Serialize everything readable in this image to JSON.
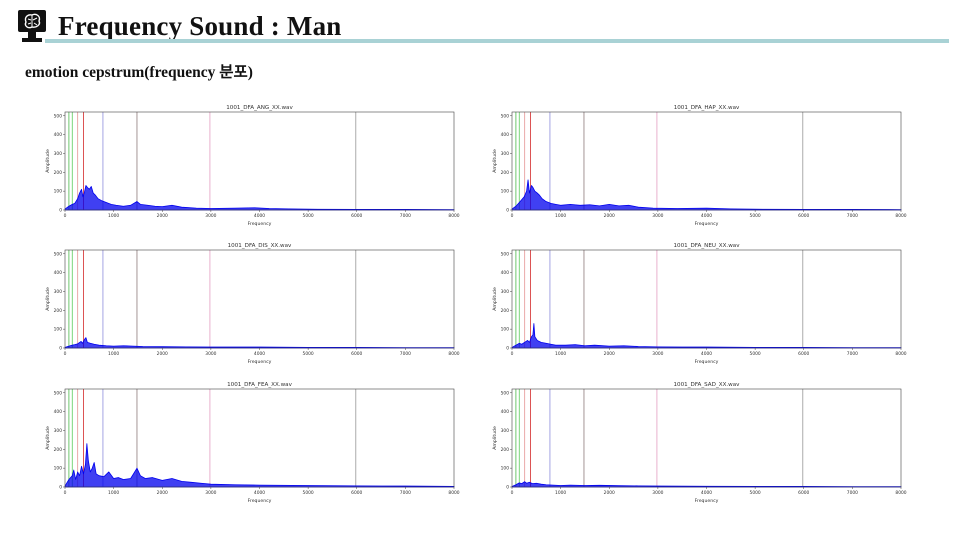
{
  "slide": {
    "title": "Frequency Sound : Man",
    "subtitle": "emotion cepstrum(frequency 분포)"
  },
  "colors": {
    "title_rule": "#a9d2d5",
    "spectrum": "#0000ee",
    "marker_lines": [
      "#5fbf5f",
      "#6ccf6c",
      "#e8a0a0",
      "#d94040",
      "#9a9ae0",
      "#9a8a8a",
      "#e6a8c8",
      "#a0a0a0"
    ]
  },
  "chart_data": [
    {
      "type": "line",
      "title": "1001_DFA_ANG_XX.wav",
      "xlabel": "Frequency",
      "ylabel": "Amplitude",
      "xlim": [
        0,
        8000
      ],
      "ylim": [
        0,
        520
      ],
      "xticks": [
        "0",
        "1000",
        "2000",
        "3000",
        "4000",
        "5000",
        "6000",
        "7000",
        "8000"
      ],
      "yticks": [
        "0",
        "100",
        "200",
        "300",
        "400",
        "500"
      ],
      "marker_lines_x": [
        80,
        150,
        260,
        380,
        780,
        1480,
        2980,
        5980
      ],
      "series": [
        {
          "points": [
            [
              0,
              5
            ],
            [
              80,
              20
            ],
            [
              150,
              30
            ],
            [
              200,
              35
            ],
            [
              260,
              60
            ],
            [
              300,
              90
            ],
            [
              340,
              110
            ],
            [
              370,
              70
            ],
            [
              400,
              95
            ],
            [
              430,
              130
            ],
            [
              460,
              120
            ],
            [
              500,
              110
            ],
            [
              540,
              125
            ],
            [
              580,
              90
            ],
            [
              620,
              80
            ],
            [
              680,
              60
            ],
            [
              750,
              50
            ],
            [
              850,
              40
            ],
            [
              950,
              30
            ],
            [
              1050,
              25
            ],
            [
              1200,
              20
            ],
            [
              1350,
              25
            ],
            [
              1480,
              45
            ],
            [
              1550,
              30
            ],
            [
              1700,
              25
            ],
            [
              1850,
              20
            ],
            [
              2000,
              18
            ],
            [
              2200,
              25
            ],
            [
              2400,
              15
            ],
            [
              2700,
              10
            ],
            [
              3000,
              8
            ],
            [
              3500,
              10
            ],
            [
              3900,
              12
            ],
            [
              4200,
              8
            ],
            [
              4600,
              6
            ],
            [
              5200,
              4
            ],
            [
              6000,
              3
            ],
            [
              7000,
              3
            ],
            [
              8000,
              2
            ]
          ]
        }
      ]
    },
    {
      "type": "line",
      "title": "1001_DFA_HAP_XX.wav",
      "xlabel": "Frequency",
      "ylabel": "Amplitude",
      "xlim": [
        0,
        8000
      ],
      "ylim": [
        0,
        520
      ],
      "xticks": [
        "0",
        "1000",
        "2000",
        "3000",
        "4000",
        "5000",
        "6000",
        "7000",
        "8000"
      ],
      "yticks": [
        "0",
        "100",
        "200",
        "300",
        "400",
        "500"
      ],
      "marker_lines_x": [
        80,
        150,
        260,
        380,
        780,
        1480,
        2980,
        5980
      ],
      "series": [
        {
          "points": [
            [
              0,
              5
            ],
            [
              80,
              20
            ],
            [
              150,
              40
            ],
            [
              200,
              55
            ],
            [
              250,
              70
            ],
            [
              300,
              100
            ],
            [
              330,
              160
            ],
            [
              360,
              90
            ],
            [
              400,
              130
            ],
            [
              430,
              120
            ],
            [
              470,
              100
            ],
            [
              520,
              90
            ],
            [
              560,
              80
            ],
            [
              620,
              60
            ],
            [
              700,
              45
            ],
            [
              800,
              35
            ],
            [
              900,
              30
            ],
            [
              1000,
              25
            ],
            [
              1200,
              30
            ],
            [
              1400,
              25
            ],
            [
              1600,
              28
            ],
            [
              1800,
              22
            ],
            [
              2000,
              30
            ],
            [
              2200,
              22
            ],
            [
              2400,
              25
            ],
            [
              2600,
              15
            ],
            [
              2900,
              10
            ],
            [
              3400,
              8
            ],
            [
              4000,
              10
            ],
            [
              4500,
              6
            ],
            [
              5200,
              4
            ],
            [
              6000,
              3
            ],
            [
              7000,
              3
            ],
            [
              8000,
              2
            ]
          ]
        }
      ]
    },
    {
      "type": "line",
      "title": "1001_DFA_DIS_XX.wav",
      "xlabel": "Frequency",
      "ylabel": "Amplitude",
      "xlim": [
        0,
        8000
      ],
      "ylim": [
        0,
        520
      ],
      "xticks": [
        "0",
        "1000",
        "2000",
        "3000",
        "4000",
        "5000",
        "6000",
        "7000",
        "8000"
      ],
      "yticks": [
        "0",
        "100",
        "200",
        "300",
        "400",
        "500"
      ],
      "marker_lines_x": [
        80,
        150,
        260,
        380,
        780,
        1480,
        2980,
        5980
      ],
      "series": [
        {
          "points": [
            [
              0,
              3
            ],
            [
              80,
              10
            ],
            [
              150,
              15
            ],
            [
              200,
              18
            ],
            [
              260,
              22
            ],
            [
              330,
              35
            ],
            [
              360,
              25
            ],
            [
              400,
              45
            ],
            [
              430,
              55
            ],
            [
              460,
              30
            ],
            [
              520,
              25
            ],
            [
              600,
              20
            ],
            [
              700,
              15
            ],
            [
              850,
              12
            ],
            [
              1000,
              10
            ],
            [
              1200,
              12
            ],
            [
              1400,
              10
            ],
            [
              1600,
              8
            ],
            [
              2000,
              7
            ],
            [
              2500,
              6
            ],
            [
              3000,
              5
            ],
            [
              4000,
              5
            ],
            [
              5000,
              3
            ],
            [
              6000,
              3
            ],
            [
              7000,
              2
            ],
            [
              8000,
              2
            ]
          ]
        }
      ]
    },
    {
      "type": "line",
      "title": "1001_DFA_NEU_XX.wav",
      "xlabel": "Frequency",
      "ylabel": "Amplitude",
      "xlim": [
        0,
        8000
      ],
      "ylim": [
        0,
        520
      ],
      "xticks": [
        "0",
        "1000",
        "2000",
        "3000",
        "4000",
        "5000",
        "6000",
        "7000",
        "8000"
      ],
      "yticks": [
        "0",
        "100",
        "200",
        "300",
        "400",
        "500"
      ],
      "marker_lines_x": [
        80,
        150,
        260,
        380,
        780,
        1480,
        2980,
        5980
      ],
      "series": [
        {
          "points": [
            [
              0,
              3
            ],
            [
              80,
              15
            ],
            [
              150,
              25
            ],
            [
              200,
              20
            ],
            [
              260,
              30
            ],
            [
              320,
              40
            ],
            [
              360,
              30
            ],
            [
              400,
              60
            ],
            [
              430,
              70
            ],
            [
              450,
              130
            ],
            [
              470,
              60
            ],
            [
              520,
              40
            ],
            [
              600,
              30
            ],
            [
              700,
              25
            ],
            [
              800,
              20
            ],
            [
              900,
              15
            ],
            [
              1100,
              15
            ],
            [
              1300,
              18
            ],
            [
              1500,
              12
            ],
            [
              1700,
              15
            ],
            [
              2000,
              10
            ],
            [
              2300,
              12
            ],
            [
              2600,
              8
            ],
            [
              3000,
              6
            ],
            [
              3500,
              5
            ],
            [
              4000,
              5
            ],
            [
              5000,
              3
            ],
            [
              6000,
              3
            ],
            [
              7000,
              2
            ],
            [
              8000,
              2
            ]
          ]
        }
      ]
    },
    {
      "type": "line",
      "title": "1001_DFA_FEA_XX.wav",
      "xlabel": "Frequency",
      "ylabel": "Amplitude",
      "xlim": [
        0,
        8000
      ],
      "ylim": [
        0,
        520
      ],
      "xticks": [
        "0",
        "1000",
        "2000",
        "3000",
        "4000",
        "5000",
        "6000",
        "7000",
        "8000"
      ],
      "yticks": [
        "0",
        "100",
        "200",
        "300",
        "400",
        "500"
      ],
      "marker_lines_x": [
        80,
        150,
        260,
        380,
        780,
        1480,
        2980,
        5980
      ],
      "series": [
        {
          "points": [
            [
              0,
              5
            ],
            [
              80,
              40
            ],
            [
              150,
              60
            ],
            [
              180,
              90
            ],
            [
              220,
              40
            ],
            [
              260,
              80
            ],
            [
              300,
              60
            ],
            [
              340,
              110
            ],
            [
              380,
              70
            ],
            [
              420,
              120
            ],
            [
              450,
              230
            ],
            [
              480,
              140
            ],
            [
              520,
              80
            ],
            [
              560,
              100
            ],
            [
              600,
              130
            ],
            [
              640,
              70
            ],
            [
              700,
              60
            ],
            [
              800,
              55
            ],
            [
              900,
              80
            ],
            [
              1000,
              45
            ],
            [
              1100,
              50
            ],
            [
              1200,
              40
            ],
            [
              1350,
              45
            ],
            [
              1480,
              100
            ],
            [
              1550,
              60
            ],
            [
              1650,
              45
            ],
            [
              1800,
              50
            ],
            [
              2000,
              35
            ],
            [
              2200,
              45
            ],
            [
              2400,
              30
            ],
            [
              2600,
              25
            ],
            [
              2800,
              20
            ],
            [
              3000,
              15
            ],
            [
              3500,
              12
            ],
            [
              4000,
              10
            ],
            [
              5000,
              8
            ],
            [
              6000,
              6
            ],
            [
              7000,
              5
            ],
            [
              8000,
              3
            ]
          ]
        }
      ]
    },
    {
      "type": "line",
      "title": "1001_DFA_SAD_XX.wav",
      "xlabel": "Frequency",
      "ylabel": "Amplitude",
      "xlim": [
        0,
        8000
      ],
      "ylim": [
        0,
        520
      ],
      "xticks": [
        "0",
        "1000",
        "2000",
        "3000",
        "4000",
        "5000",
        "6000",
        "7000",
        "8000"
      ],
      "yticks": [
        "0",
        "100",
        "200",
        "300",
        "400",
        "500"
      ],
      "marker_lines_x": [
        80,
        150,
        260,
        380,
        780,
        1480,
        2980,
        5980
      ],
      "series": [
        {
          "points": [
            [
              0,
              3
            ],
            [
              80,
              12
            ],
            [
              150,
              22
            ],
            [
              200,
              18
            ],
            [
              260,
              28
            ],
            [
              300,
              20
            ],
            [
              360,
              25
            ],
            [
              420,
              18
            ],
            [
              500,
              20
            ],
            [
              600,
              15
            ],
            [
              700,
              12
            ],
            [
              850,
              10
            ],
            [
              1000,
              8
            ],
            [
              1200,
              10
            ],
            [
              1500,
              8
            ],
            [
              1800,
              9
            ],
            [
              2200,
              7
            ],
            [
              2600,
              6
            ],
            [
              3000,
              5
            ],
            [
              4000,
              4
            ],
            [
              5000,
              3
            ],
            [
              6000,
              3
            ],
            [
              7000,
              2
            ],
            [
              8000,
              2
            ]
          ]
        }
      ]
    }
  ]
}
